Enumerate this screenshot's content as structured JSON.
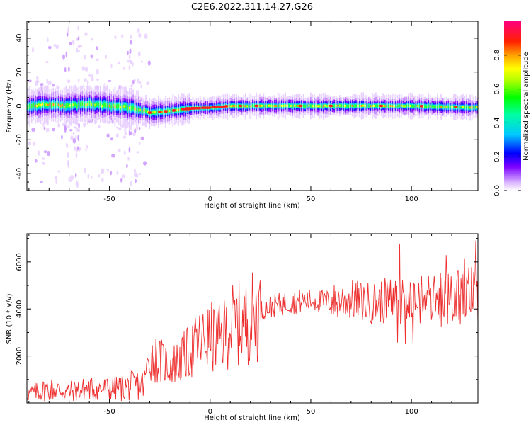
{
  "title": "C2E6.2022.311.14.27.G26",
  "chart_data": [
    {
      "type": "heatmap",
      "xlabel": "Height of straight line (km)",
      "ylabel": "Frequency (Hz)",
      "xlim": [
        -91,
        133
      ],
      "ylim": [
        -50,
        50
      ],
      "xticks": [
        -50,
        0,
        50,
        100
      ],
      "yticks": [
        -40,
        -20,
        0,
        20,
        40
      ],
      "colorbar": {
        "label": "Normalized spectral amplitude",
        "ticks": [
          0.0,
          0.2,
          0.4,
          0.6,
          0.8
        ],
        "range": [
          0,
          1
        ]
      },
      "ridge": [
        {
          "x": -90,
          "f": 0
        },
        {
          "x": -80,
          "f": 1
        },
        {
          "x": -70,
          "f": 0
        },
        {
          "x": -60,
          "f": 1
        },
        {
          "x": -50,
          "f": 0
        },
        {
          "x": -40,
          "f": -1
        },
        {
          "x": -30,
          "f": -4
        },
        {
          "x": -20,
          "f": -3
        },
        {
          "x": -10,
          "f": -1.5
        },
        {
          "x": 0,
          "f": -1
        },
        {
          "x": 10,
          "f": 0
        },
        {
          "x": 20,
          "f": 0
        },
        {
          "x": 50,
          "f": 0
        },
        {
          "x": 100,
          "f": 0
        },
        {
          "x": 133,
          "f": -1
        }
      ]
    },
    {
      "type": "line",
      "xlabel": "Height of straight line (km)",
      "ylabel": "SNR (10 * v/v)",
      "xlim": [
        -91,
        133
      ],
      "ylim": [
        0,
        7200
      ],
      "xticks": [
        -50,
        0,
        50,
        100
      ],
      "yticks": [
        2000,
        4000,
        6000
      ],
      "color": "#ee3030",
      "series": [
        {
          "x": [
            -90,
            -80,
            -70,
            -60,
            -50,
            -40,
            -33,
            -30,
            -25,
            -20,
            -15,
            -10,
            -5,
            0,
            5,
            10,
            15,
            20,
            25,
            30,
            40,
            50,
            60,
            70,
            80,
            90,
            100,
            110,
            120,
            130,
            133
          ],
          "y": [
            400,
            600,
            500,
            600,
            600,
            700,
            800,
            2000,
            1800,
            1600,
            1800,
            2200,
            2600,
            2800,
            2700,
            3300,
            3400,
            3600,
            3900,
            4100,
            4300,
            4350,
            4300,
            4400,
            4250,
            4400,
            4300,
            4400,
            4400,
            4600,
            4700
          ]
        }
      ]
    }
  ]
}
